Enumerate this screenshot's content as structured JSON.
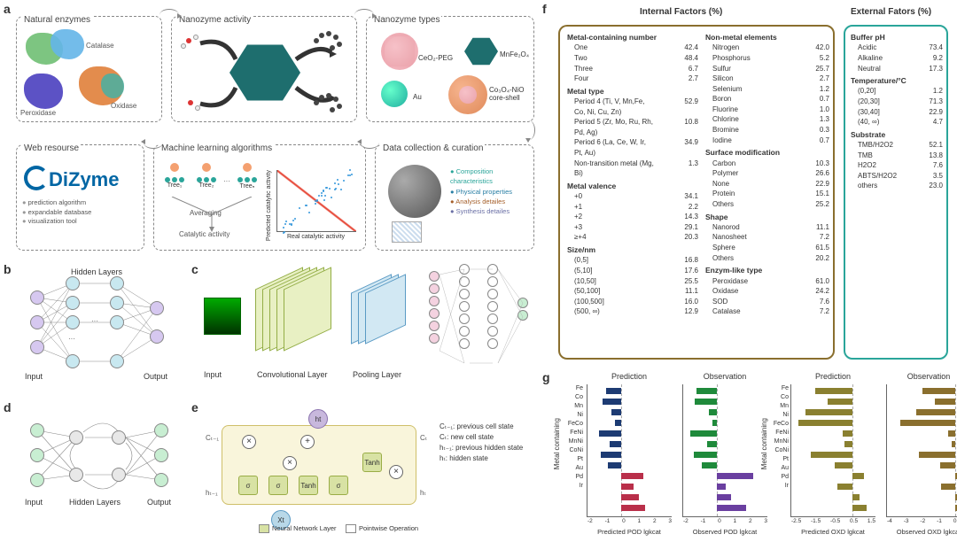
{
  "labels": {
    "a": "a",
    "b": "b",
    "c": "c",
    "d": "d",
    "e": "e",
    "f": "f",
    "g": "g"
  },
  "a": {
    "nat_enz": {
      "title": "Natural enzymes",
      "items": [
        "Catalase",
        "Peroxidase",
        "Oxidase"
      ]
    },
    "nano_act": {
      "title": "Nanozyme activity"
    },
    "nano_typ": {
      "title": "Nanozyme types",
      "items": [
        "CeO₂-PEG",
        "MnFe₂O₄",
        "Au",
        "Co₃O₄-NiO core-shell"
      ]
    },
    "web_res": {
      "title": "Web resourse",
      "logo": "DiZyme",
      "bullets": [
        "prediction algorithm",
        "expandable database",
        "visualization tool"
      ]
    },
    "ml_alg": {
      "title": "Machine learning algorithms",
      "trees": [
        "Tree₁",
        "Tree₂",
        "Treeₙ"
      ],
      "avg": "Averaging",
      "ylab": "Catalytic activity",
      "sc_y": "Predicted catalytic activity",
      "sc_x": "Real catalytic activity"
    },
    "data_col": {
      "title": "Data collection  & curation",
      "bullets": [
        "Composition characteristics",
        "Physical properties",
        "Analysis detailes",
        "Synthesis detailes"
      ]
    }
  },
  "bc": {
    "input": "Input",
    "hidden": "Hidden Layers",
    "output": "Output",
    "conv": "Convolutional Layer",
    "pool": "Pooling Layer"
  },
  "e": {
    "gates": [
      "σ",
      "σ",
      "Tanh",
      "σ",
      "Tanh"
    ],
    "io": {
      "ht": "ht",
      "xt": "Xt",
      "ct1": "Cₜ₋₁",
      "ht1": "hₜ₋₁",
      "ct": "Cₜ",
      "hto": "hₜ"
    },
    "legend1": "Neural Network Layer",
    "legend2": "Pointwise Operation",
    "desc": [
      "Cₜ₋₁: previous cell state",
      "Cₜ: new cell state",
      "hₜ₋₁: previous hidden state",
      "hₜ: hidden state"
    ]
  },
  "f": {
    "head_l": "Internal Factors (%)",
    "head_r": "External Fators (%)",
    "left": {
      "Metal-containing number": [
        [
          "One",
          "42.4"
        ],
        [
          "Two",
          "48.4"
        ],
        [
          "Three",
          "6.7"
        ],
        [
          "Four",
          "2.7"
        ]
      ],
      "Metal type": [
        [
          "Period 4 (Ti, V, Mn,Fe, Co, Ni, Cu, Zn)",
          "52.9"
        ],
        [
          "Period 5 (Zr, Mo, Ru, Rh, Pd, Ag)",
          "10.8"
        ],
        [
          "Period 6 (La, Ce, W, Ir, Pt, Au)",
          "34.9"
        ],
        [
          "Non-transition metal (Mg, Bi)",
          "1.3"
        ]
      ],
      "Metal valence": [
        [
          "+0",
          "34.1"
        ],
        [
          "+1",
          "2.2"
        ],
        [
          "+2",
          "14.3"
        ],
        [
          "+3",
          "29.1"
        ],
        [
          "≥+4",
          "20.3"
        ]
      ],
      "Size/nm": [
        [
          "(0,5]",
          "16.8"
        ],
        [
          "(5,10]",
          "17.6"
        ],
        [
          "(10,50]",
          "25.5"
        ],
        [
          "(50,100]",
          "11.1"
        ],
        [
          "(100,500]",
          "16.0"
        ],
        [
          "(500, ∞)",
          "12.9"
        ]
      ]
    },
    "mid": {
      "Non-metal elements": [
        [
          "Nitrogen",
          "42.0"
        ],
        [
          "Phosphorus",
          "5.2"
        ],
        [
          "Sulfur",
          "25.7"
        ],
        [
          "Silicon",
          "2.7"
        ],
        [
          "Selenium",
          "1.2"
        ],
        [
          "Boron",
          "0.7"
        ],
        [
          "Fluorine",
          "1.0"
        ],
        [
          "Chlorine",
          "1.3"
        ],
        [
          "Bromine",
          "0.3"
        ],
        [
          "Iodine",
          "0.7"
        ]
      ],
      "Surface modification": [
        [
          "Carbon",
          "10.3"
        ],
        [
          "Polymer",
          "26.6"
        ],
        [
          "None",
          "22.9"
        ],
        [
          "Protein",
          "15.1"
        ],
        [
          "Others",
          "25.2"
        ]
      ],
      "Shape": [
        [
          "Nanorod",
          "11.1"
        ],
        [
          "Nanosheet",
          "7.2"
        ],
        [
          "Sphere",
          "61.5"
        ],
        [
          "Others",
          "20.2"
        ]
      ],
      "Enzym-like type": [
        [
          "Peroxidase",
          "61.0"
        ],
        [
          "Oxidase",
          "24.2"
        ],
        [
          "SOD",
          "7.6"
        ],
        [
          "Catalase",
          "7.2"
        ]
      ]
    },
    "right": {
      "Buffer pH": [
        [
          "Acidic",
          "73.4"
        ],
        [
          "Alkaline",
          "9.2"
        ],
        [
          "Neutral",
          "17.3"
        ]
      ],
      "Temperature/°C": [
        [
          "(0,20]",
          "1.2"
        ],
        [
          "(20,30]",
          "71.3"
        ],
        [
          "(30,40]",
          "22.9"
        ],
        [
          "(40, ∞)",
          "4.7"
        ]
      ],
      "Substrate": [
        [
          "TMB/H2O2",
          "52.1"
        ],
        [
          "TMB",
          "13.8"
        ],
        [
          "H2O2",
          "7.6"
        ],
        [
          "ABTS/H2O2",
          "3.5"
        ],
        [
          "others",
          "23.0"
        ]
      ]
    }
  },
  "g": {
    "metals": [
      "Fe",
      "Co",
      "Mn",
      "Ni",
      "FeCo",
      "FeNi",
      "MnNi",
      "CoNi",
      "Pt",
      "Au",
      "Pd",
      "Ir"
    ],
    "titles": [
      "Prediction",
      "Observation",
      "Prediction",
      "Observation"
    ],
    "xlabels": [
      "Predicted POD lgkcat",
      "Observed POD lgkcat",
      "Predicted OXD lgkcat",
      "Observed OXD lgkcat"
    ],
    "ylab": "Metal containing",
    "xlims": [
      [
        -2,
        3
      ],
      [
        -2,
        3
      ],
      [
        -2.5,
        1
      ],
      [
        -4,
        1
      ]
    ],
    "colors": [
      [
        "#1d3b73",
        "#b92f4a"
      ],
      [
        "#1f8a3b",
        "#6a3fa0"
      ],
      [
        "#8a8030",
        "#8a8030"
      ],
      [
        "#8a6f2e",
        "#8a6f2e"
      ]
    ],
    "data": [
      [
        -0.9,
        -1.1,
        -0.6,
        -0.4,
        -1.3,
        -0.7,
        -1.2,
        -0.8,
        1.3,
        0.7,
        1.0,
        1.4
      ],
      [
        -1.2,
        -1.3,
        -0.5,
        -0.3,
        -1.6,
        -0.6,
        -1.4,
        -0.9,
        2.1,
        0.5,
        0.8,
        1.7
      ],
      [
        -1.5,
        -1.0,
        -1.9,
        -2.2,
        -0.4,
        -0.3,
        -1.7,
        -0.7,
        0.5,
        -0.6,
        0.3,
        0.6
      ],
      [
        -1.9,
        -1.2,
        -2.3,
        -3.2,
        -0.4,
        -0.2,
        -2.1,
        -0.9,
        0.6,
        -0.8,
        0.4,
        0.7
      ]
    ],
    "split": [
      8,
      8,
      12,
      12
    ]
  }
}
